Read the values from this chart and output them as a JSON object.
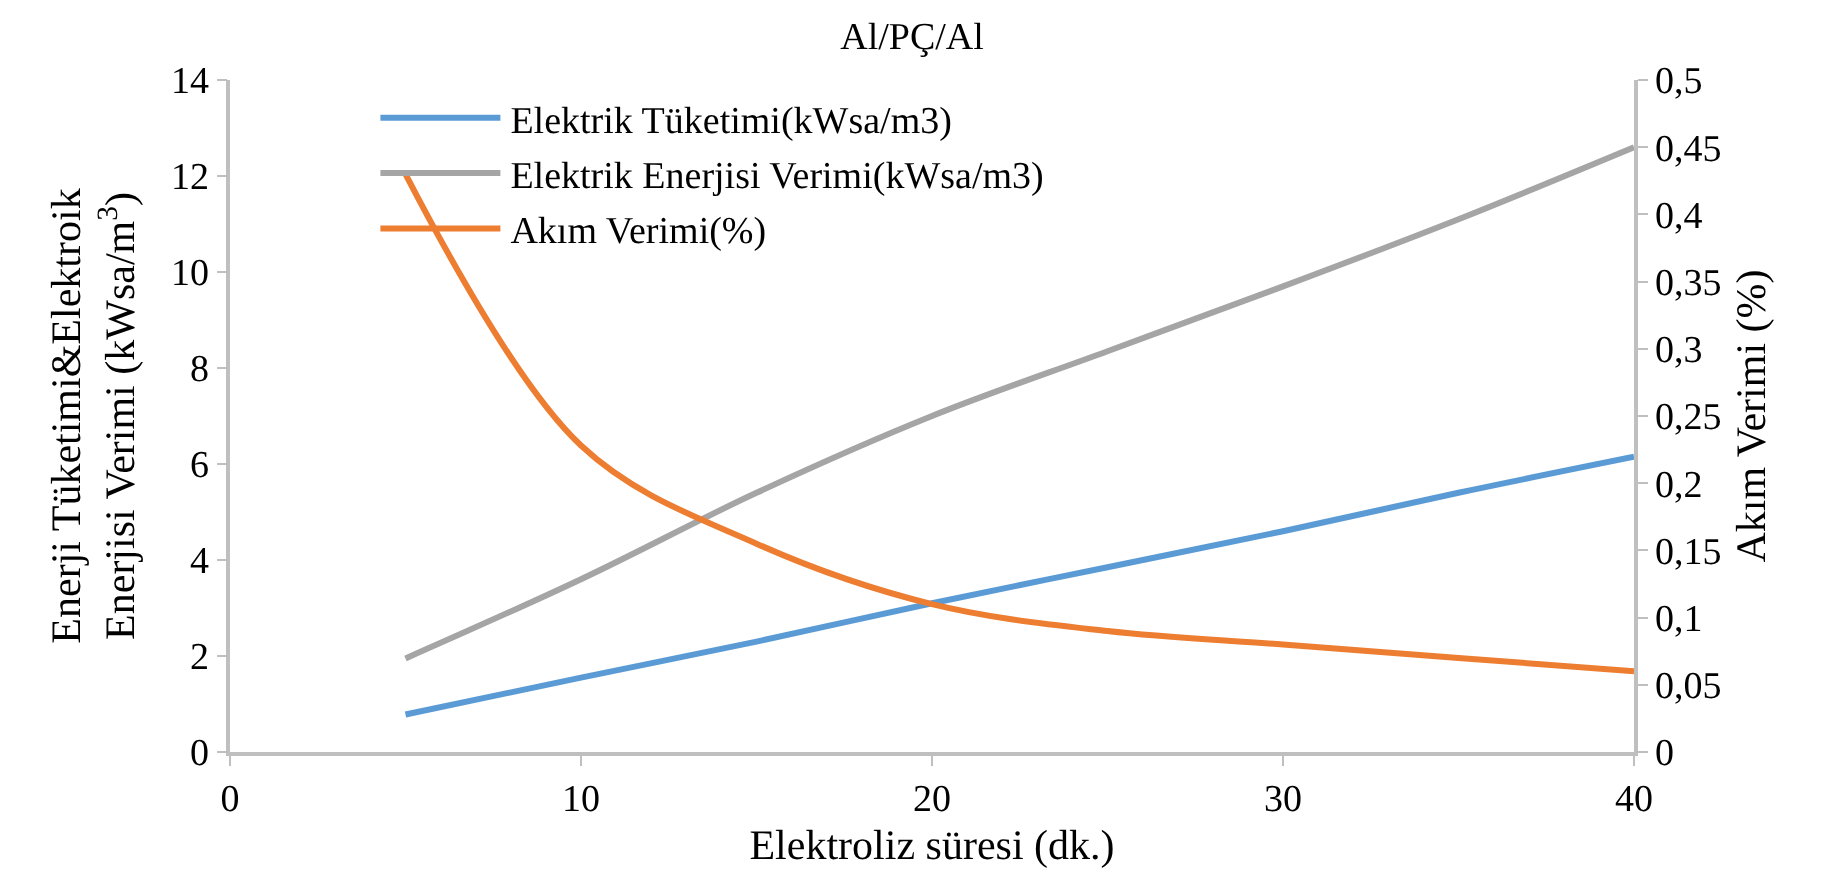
{
  "chart_data": {
    "type": "line",
    "title": "Al/PÇ/Al",
    "xlabel": "Elektroliz süresi (dk.)",
    "ylabel": "Enerji Tüketimi&Elektroik\nEnerjisi Verimi (kWsa/m$^{3}$)",
    "y2label": "Akım Verimi (%)",
    "x": [
      5,
      10,
      15,
      20,
      25,
      30,
      35,
      40
    ],
    "series": [
      {
        "name": "Elektrik Tüketimi(kWsa/m3)",
        "color": "#5b9bd5",
        "values": [
          0.78,
          1.55,
          2.3,
          3.1,
          3.85,
          4.6,
          5.4,
          6.15
        ]
      },
      {
        "name": "Elektrik Enerjisi Verimi(kWsa/m3)",
        "color": "#a5a5a5",
        "values": [
          1.95,
          3.6,
          5.4,
          7.0,
          8.35,
          9.7,
          11.1,
          12.6
        ]
      },
      {
        "name": "Akım Verimi(%)",
        "color": "#ed7d31",
        "axis": "y2",
        "values": [
          0.43,
          0.228,
          0.155,
          0.11,
          0.09,
          0.08,
          0.07,
          0.06
        ]
      }
    ],
    "xlim": [
      0,
      40
    ],
    "xticks": [
      0,
      10,
      20,
      30,
      40
    ],
    "ylim": [
      0,
      14
    ],
    "yticks": [
      0,
      2,
      4,
      6,
      8,
      10,
      12,
      14
    ],
    "y2lim": [
      0,
      0.5
    ],
    "y2ticks": [
      0,
      {
        "value": 0.05,
        "label": "0,05"
      },
      {
        "value": 0.1,
        "label": "0,1"
      },
      {
        "value": 0.15,
        "label": "0,15"
      },
      {
        "value": 0.2,
        "label": "0,2"
      },
      {
        "value": 0.25,
        "label": "0,25"
      },
      {
        "value": 0.3,
        "label": "0,3"
      },
      {
        "value": 0.35,
        "label": "0,35"
      },
      {
        "value": 0.4,
        "label": "0,4"
      },
      {
        "value": 0.45,
        "label": "0,45"
      },
      {
        "value": 0.5,
        "label": "0,5"
      }
    ],
    "legend": "top left",
    "marker": "none",
    "line_style": "solid"
  }
}
